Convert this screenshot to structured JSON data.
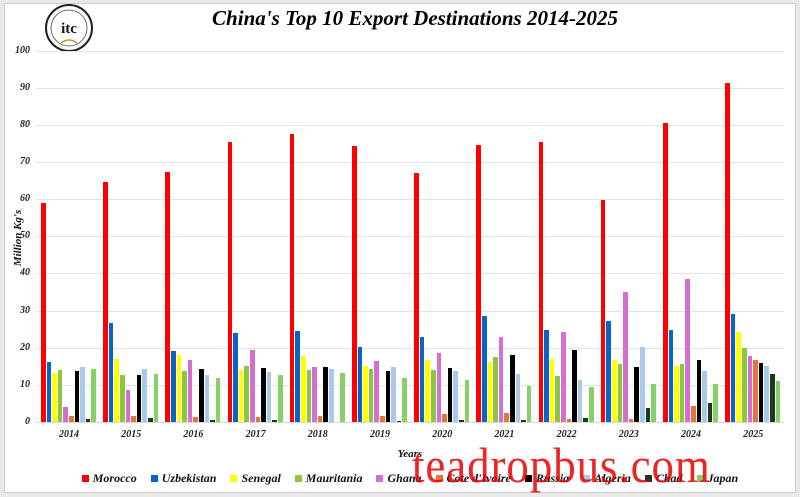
{
  "logo": {
    "ring_text": "INTERNATIONAL TEA COMMITTEE",
    "monogram": "itc"
  },
  "watermark": "teadropbus.com",
  "chart_data": {
    "type": "bar",
    "title": "China's Top 10 Export Destinations 2014-2025",
    "xlabel": "Years",
    "ylabel": "Million Kg's",
    "ylim": [
      0,
      100
    ],
    "yticks": [
      0,
      10,
      20,
      30,
      40,
      50,
      60,
      70,
      80,
      90,
      100
    ],
    "grid": true,
    "legend_position": "bottom",
    "categories": [
      "2014",
      "2015",
      "2016",
      "2017",
      "2018",
      "2019",
      "2020",
      "2021",
      "2022",
      "2023",
      "2024",
      "2025"
    ],
    "series": [
      {
        "name": "Morocco",
        "color": "#ff0000",
        "values": [
          59.0,
          64.5,
          67.2,
          75.3,
          77.5,
          74.2,
          67.0,
          74.5,
          75.3,
          59.7,
          80.5,
          91.2
        ]
      },
      {
        "name": "Uzbekistan",
        "color": "#0b63c4",
        "values": [
          16.2,
          26.7,
          19.0,
          24.0,
          24.6,
          20.3,
          23.0,
          28.6,
          24.8,
          27.2,
          24.8,
          29.1
        ]
      },
      {
        "name": "Senegal",
        "color": "#ffff00",
        "values": [
          13.3,
          17.0,
          18.1,
          13.9,
          17.7,
          15.0,
          16.8,
          16.1,
          17.0,
          16.7,
          15.0,
          24.3
        ]
      },
      {
        "name": "Mauritania",
        "color": "#8cc63f",
        "values": [
          13.9,
          12.7,
          13.6,
          15.2,
          13.9,
          14.4,
          13.9,
          17.4,
          12.5,
          15.7,
          15.7,
          20.0
        ]
      },
      {
        "name": "Ghana",
        "color": "#d36fd0",
        "values": [
          4.1,
          8.5,
          16.8,
          19.5,
          14.8,
          16.3,
          18.6,
          22.8,
          24.3,
          35.1,
          38.6,
          17.9
        ]
      },
      {
        "name": "Cote d'Ivoire",
        "color": "#e8723a",
        "values": [
          1.6,
          1.5,
          1.3,
          1.3,
          1.5,
          1.5,
          2.1,
          2.3,
          0.8,
          0.7,
          4.2,
          16.6
        ]
      },
      {
        "name": "Russia",
        "color": "#000000",
        "values": [
          13.8,
          12.6,
          14.2,
          14.6,
          14.8,
          13.8,
          14.6,
          18.1,
          19.5,
          14.7,
          16.7,
          16.0
        ]
      },
      {
        "name": "Algeria",
        "color": "#a9c8ea",
        "values": [
          14.8,
          14.2,
          12.6,
          13.4,
          14.2,
          14.9,
          13.7,
          12.9,
          11.3,
          20.1,
          13.6,
          15.2
        ]
      },
      {
        "name": "Chad",
        "color": "#1a3a1a",
        "values": [
          0.7,
          1.0,
          0.5,
          0.5,
          0.0,
          0.4,
          0.6,
          0.6,
          1.0,
          3.7,
          5.2,
          12.8
        ]
      },
      {
        "name": "Japan",
        "color": "#86d06a",
        "values": [
          14.4,
          12.9,
          11.8,
          12.7,
          13.3,
          11.8,
          11.4,
          9.8,
          9.4,
          10.2,
          10.1,
          11.0
        ]
      }
    ]
  }
}
